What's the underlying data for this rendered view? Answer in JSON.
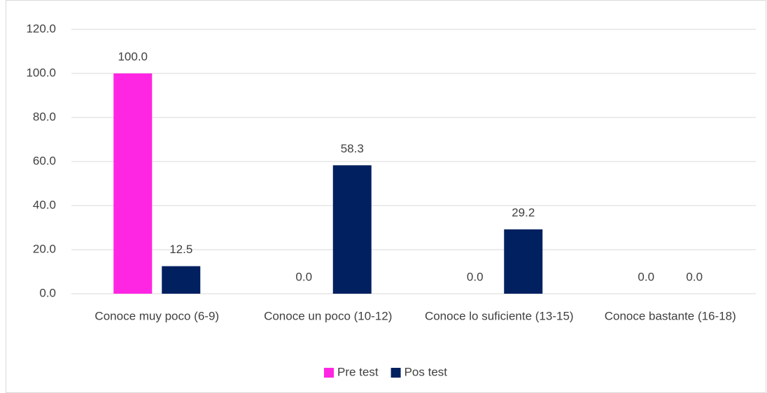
{
  "chart_data": {
    "type": "bar",
    "categories": [
      "Conoce muy poco (6-9)",
      "Conoce un poco (10-12)",
      "Conoce lo suficiente (13-15)",
      "Conoce bastante (16-18)"
    ],
    "series": [
      {
        "name": "Pre test",
        "color": "#ff26e3",
        "values": [
          100,
          0,
          0,
          0
        ],
        "value_labels": [
          "100.0",
          "0.0",
          "0.0",
          "0.0"
        ]
      },
      {
        "name": "Pos test",
        "color": "#002060",
        "values": [
          12.5,
          58.3,
          29.2,
          0
        ],
        "value_labels": [
          "12.5",
          "58.3",
          "29.2",
          "0.0"
        ]
      }
    ],
    "ylim": [
      0,
      120
    ],
    "yticks": [
      {
        "value": 0,
        "label": "0.0"
      },
      {
        "value": 20,
        "label": "20.0"
      },
      {
        "value": 40,
        "label": "40.0"
      },
      {
        "value": 60,
        "label": "60.0"
      },
      {
        "value": 80,
        "label": "80.0"
      },
      {
        "value": 100,
        "label": "100.0"
      },
      {
        "value": 120,
        "label": "120.0"
      }
    ],
    "grid": true,
    "legend": "bottom"
  }
}
